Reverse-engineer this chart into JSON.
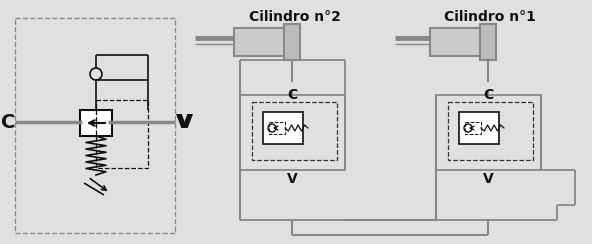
{
  "bg_color": "#e0e0e0",
  "line_color": "#888888",
  "dark_color": "#333333",
  "black": "#111111",
  "title2": "Cilindro n°2",
  "title1": "Cilindro n°1",
  "label_C": "C",
  "label_V": "V",
  "figsize": [
    5.92,
    2.44
  ],
  "dpi": 100
}
